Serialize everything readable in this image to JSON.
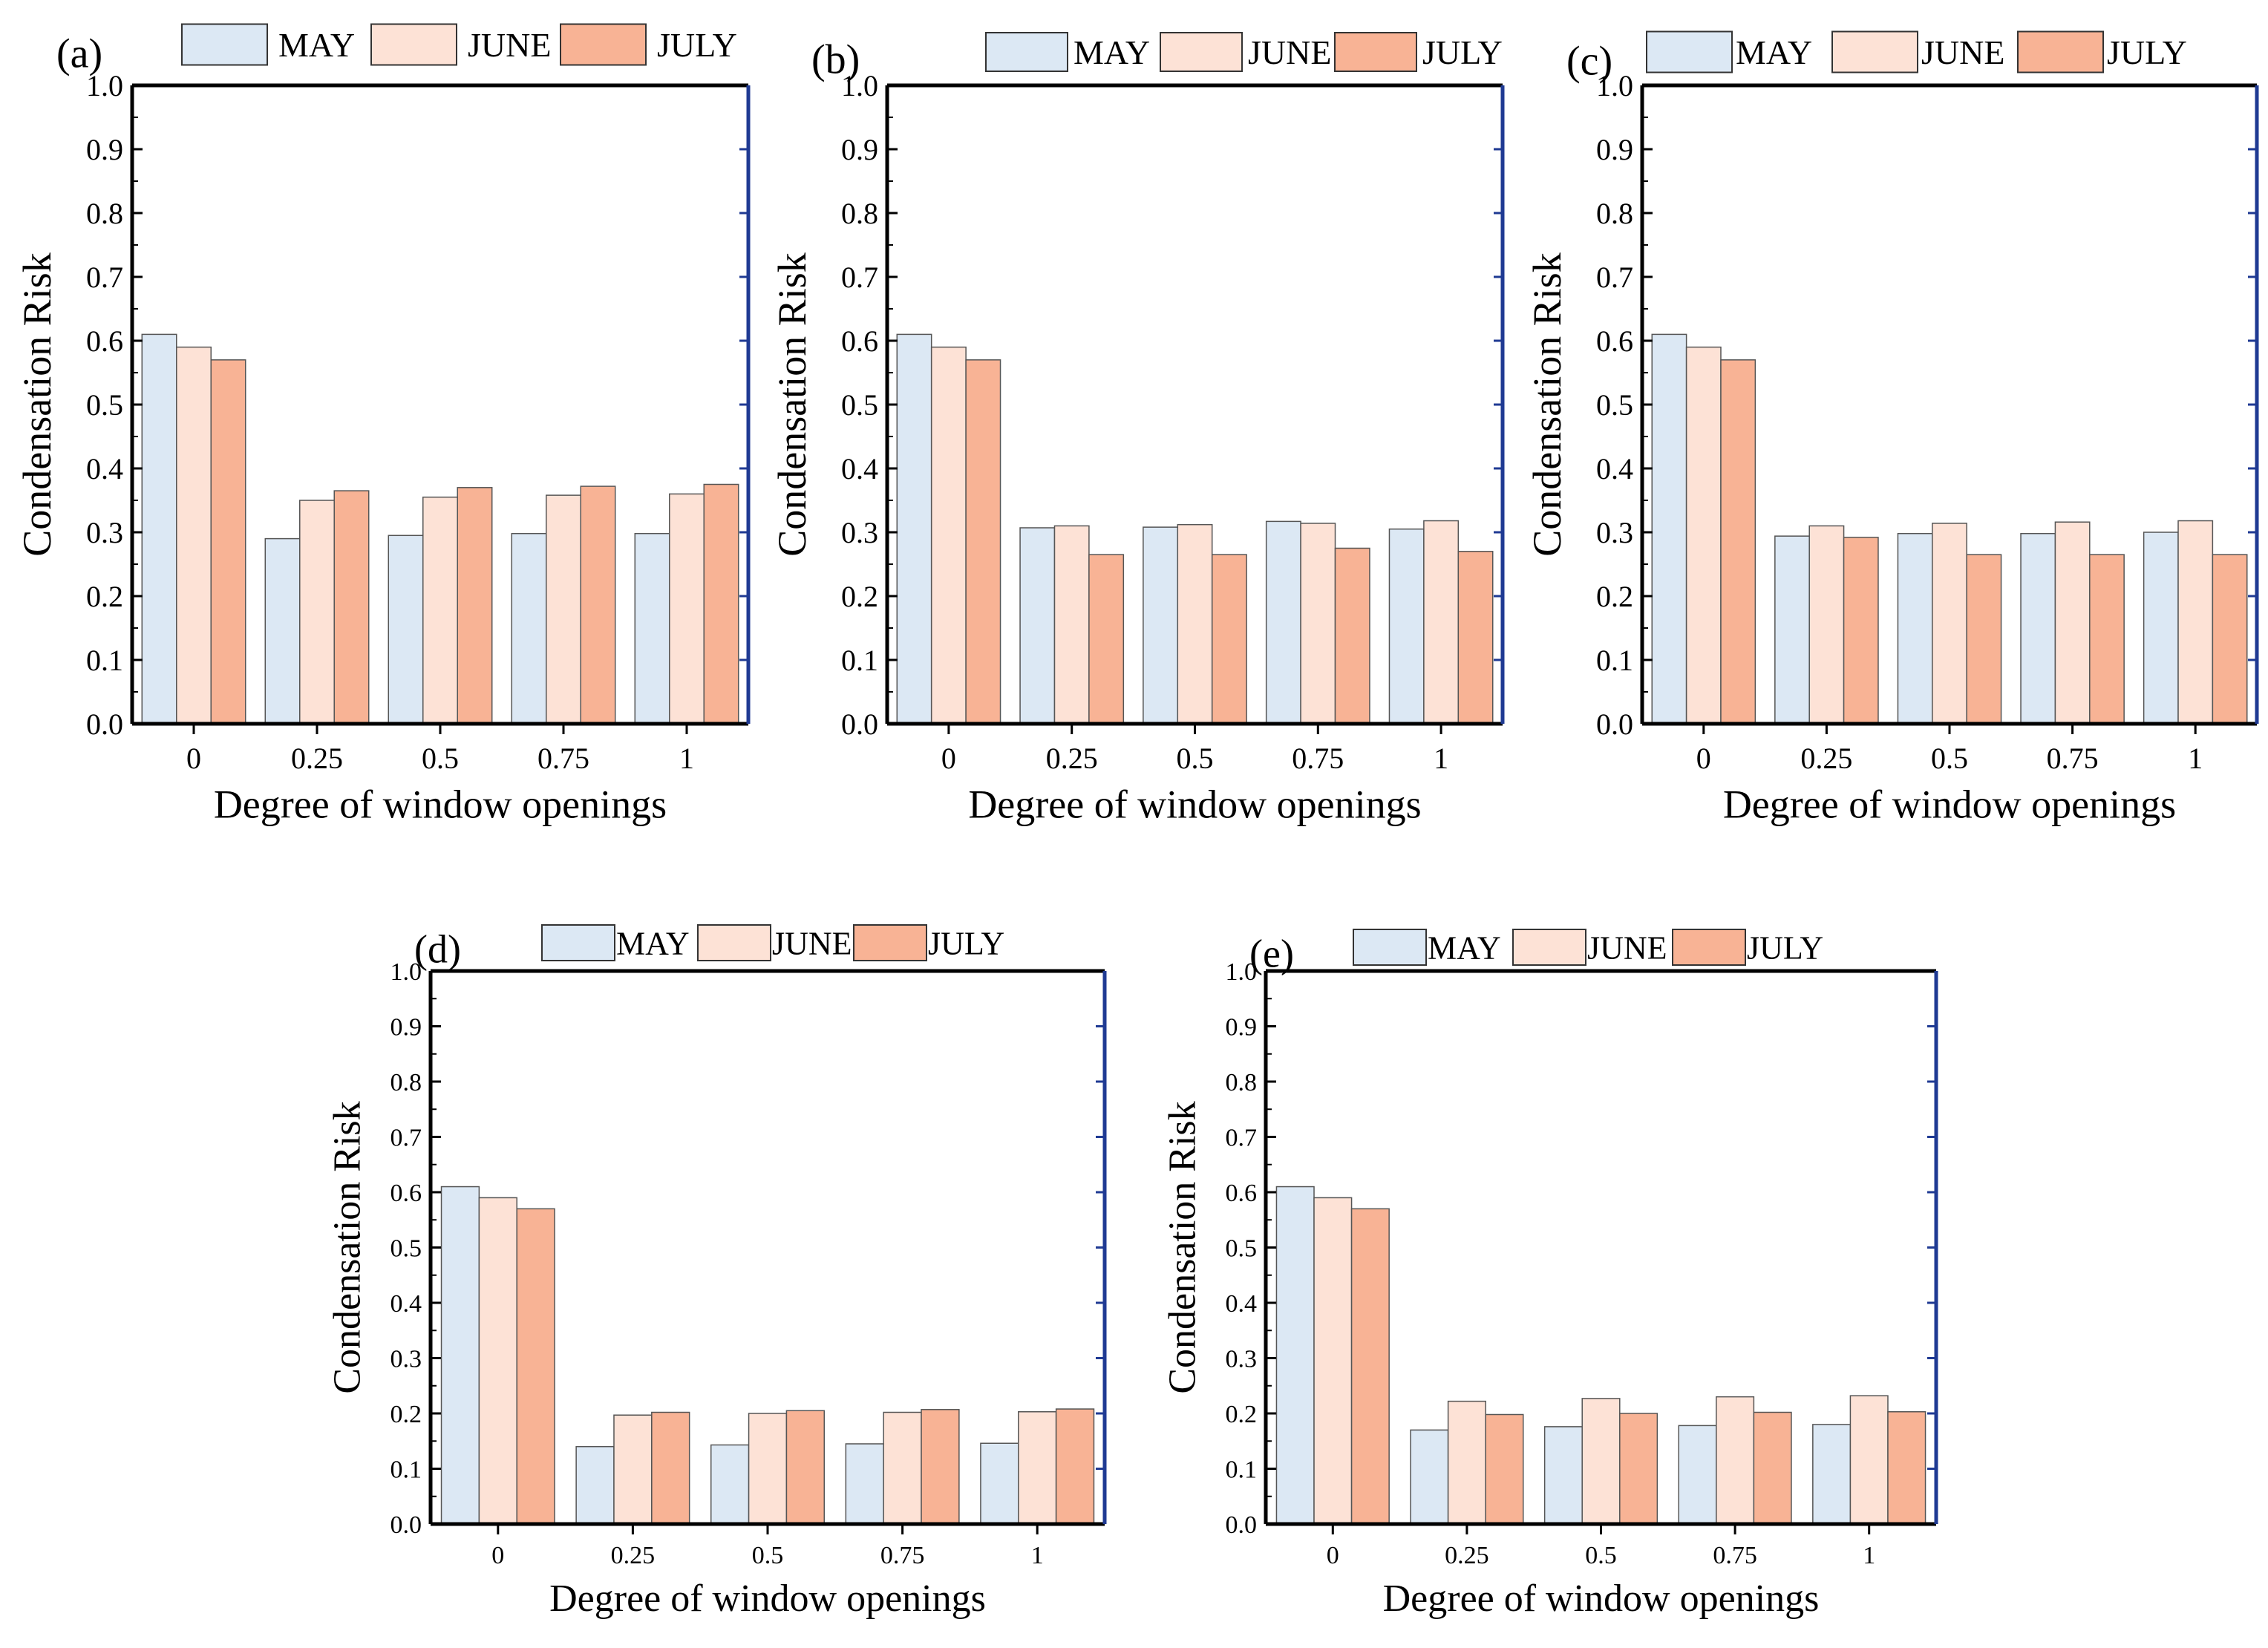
{
  "colors": {
    "may": "#dce8f4",
    "june": "#fde2d6",
    "july": "#f8b395",
    "bar_stroke": "#555555",
    "right_axis": "#1f3a93"
  },
  "chart_data": [
    {
      "panel": "(a)",
      "type": "bar",
      "categories": [
        "0",
        "0.25",
        "0.5",
        "0.75",
        "1"
      ],
      "xlabel": "Degree of window openings",
      "ylabel": "Condensation Risk",
      "ylim": [
        0,
        1.0
      ],
      "yticks": [
        "0.0",
        "0.1",
        "0.2",
        "0.3",
        "0.4",
        "0.5",
        "0.6",
        "0.7",
        "0.8",
        "0.9",
        "1.0"
      ],
      "legend": [
        "MAY",
        "JUNE",
        "JULY"
      ],
      "series": [
        {
          "name": "MAY",
          "values": [
            0.61,
            0.29,
            0.295,
            0.298,
            0.298
          ]
        },
        {
          "name": "JUNE",
          "values": [
            0.59,
            0.35,
            0.355,
            0.358,
            0.36
          ]
        },
        {
          "name": "JULY",
          "values": [
            0.57,
            0.365,
            0.37,
            0.372,
            0.375
          ]
        }
      ]
    },
    {
      "panel": "(b)",
      "type": "bar",
      "categories": [
        "0",
        "0.25",
        "0.5",
        "0.75",
        "1"
      ],
      "xlabel": "Degree of window openings",
      "ylabel": "Condensation Risk",
      "ylim": [
        0,
        1.0
      ],
      "yticks": [
        "0.0",
        "0.1",
        "0.2",
        "0.3",
        "0.4",
        "0.5",
        "0.6",
        "0.7",
        "0.8",
        "0.9",
        "1.0"
      ],
      "legend": [
        "MAY",
        "JUNE",
        "JULY"
      ],
      "series": [
        {
          "name": "MAY",
          "values": [
            0.61,
            0.307,
            0.308,
            0.317,
            0.305
          ]
        },
        {
          "name": "JUNE",
          "values": [
            0.59,
            0.31,
            0.312,
            0.314,
            0.318
          ]
        },
        {
          "name": "JULY",
          "values": [
            0.57,
            0.265,
            0.265,
            0.275,
            0.27
          ]
        }
      ]
    },
    {
      "panel": "(c)",
      "type": "bar",
      "categories": [
        "0",
        "0.25",
        "0.5",
        "0.75",
        "1"
      ],
      "xlabel": "Degree of window openings",
      "ylabel": "Condensation Risk",
      "ylim": [
        0,
        1.0
      ],
      "yticks": [
        "0.0",
        "0.1",
        "0.2",
        "0.3",
        "0.4",
        "0.5",
        "0.6",
        "0.7",
        "0.8",
        "0.9",
        "1.0"
      ],
      "legend": [
        "MAY",
        "JUNE",
        "JULY"
      ],
      "series": [
        {
          "name": "MAY",
          "values": [
            0.61,
            0.294,
            0.298,
            0.298,
            0.3
          ]
        },
        {
          "name": "JUNE",
          "values": [
            0.59,
            0.31,
            0.314,
            0.316,
            0.318
          ]
        },
        {
          "name": "JULY",
          "values": [
            0.57,
            0.292,
            0.265,
            0.265,
            0.265
          ]
        }
      ]
    },
    {
      "panel": "(d)",
      "type": "bar",
      "categories": [
        "0",
        "0.25",
        "0.5",
        "0.75",
        "1"
      ],
      "xlabel": "Degree of window openings",
      "ylabel": "Condensation Risk",
      "ylim": [
        0,
        1.0
      ],
      "yticks": [
        "0.0",
        "0.1",
        "0.2",
        "0.3",
        "0.4",
        "0.5",
        "0.6",
        "0.7",
        "0.8",
        "0.9",
        "1.0"
      ],
      "legend": [
        "MAY",
        "JUNE",
        "JULY"
      ],
      "series": [
        {
          "name": "MAY",
          "values": [
            0.61,
            0.14,
            0.143,
            0.145,
            0.146
          ]
        },
        {
          "name": "JUNE",
          "values": [
            0.59,
            0.197,
            0.2,
            0.202,
            0.203
          ]
        },
        {
          "name": "JULY",
          "values": [
            0.57,
            0.202,
            0.205,
            0.207,
            0.208
          ]
        }
      ]
    },
    {
      "panel": "(e)",
      "type": "bar",
      "categories": [
        "0",
        "0.25",
        "0.5",
        "0.75",
        "1"
      ],
      "xlabel": "Degree of window openings",
      "ylabel": "Condensation Risk",
      "ylim": [
        0,
        1.0
      ],
      "yticks": [
        "0.0",
        "0.1",
        "0.2",
        "0.3",
        "0.4",
        "0.5",
        "0.6",
        "0.7",
        "0.8",
        "0.9",
        "1.0"
      ],
      "legend": [
        "MAY",
        "JUNE",
        "JULY"
      ],
      "series": [
        {
          "name": "MAY",
          "values": [
            0.61,
            0.17,
            0.176,
            0.178,
            0.18
          ]
        },
        {
          "name": "JUNE",
          "values": [
            0.59,
            0.222,
            0.227,
            0.23,
            0.232
          ]
        },
        {
          "name": "JULY",
          "values": [
            0.57,
            0.198,
            0.2,
            0.202,
            0.203
          ]
        }
      ]
    }
  ]
}
